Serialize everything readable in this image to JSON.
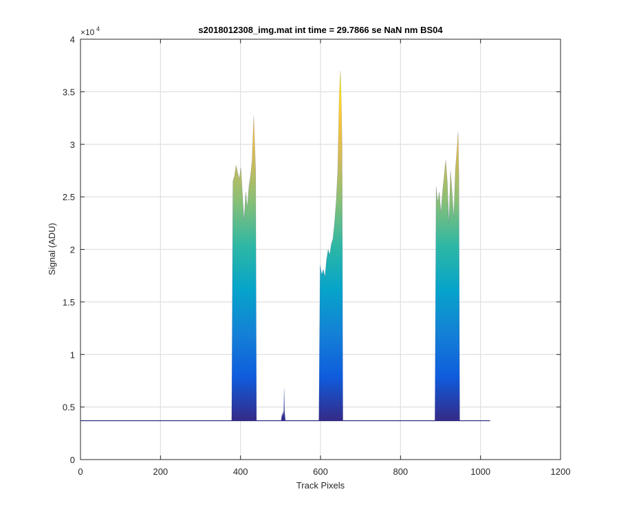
{
  "chart_data": {
    "type": "area",
    "title": "s2018012308_img.mat int time = 29.7866 se  NaN nm BS04",
    "xlabel": "Track Pixels",
    "ylabel": "Signal (ADU)",
    "xlim": [
      0,
      1200
    ],
    "ylim": [
      0,
      40000
    ],
    "y_exponent_label": "×10",
    "y_exponent_power": "4",
    "x_ticks": [
      0,
      200,
      400,
      600,
      800,
      1000,
      1200
    ],
    "x_tick_labels": [
      "0",
      "200",
      "400",
      "600",
      "800",
      "1000",
      "1200"
    ],
    "y_ticks": [
      0,
      5000,
      10000,
      15000,
      20000,
      25000,
      30000,
      35000,
      40000
    ],
    "y_tick_labels": [
      "0",
      "0.5",
      "1",
      "1.5",
      "2",
      "2.5",
      "3",
      "3.5",
      "4"
    ],
    "grid": true,
    "colormap": "parula",
    "colormap_stops": [
      "#352a87",
      "#0f5cdd",
      "#1481d6",
      "#06a4ca",
      "#2eb7a4",
      "#87bf77",
      "#d1bb59",
      "#fec832",
      "#f9fb0e"
    ],
    "line_color": "#2a2a80",
    "baseline": 3700,
    "x_range": [
      0,
      1024
    ],
    "peaks": [
      {
        "x_start": 378,
        "x_end": 440,
        "points": [
          [
            378,
            3900
          ],
          [
            381,
            26500
          ],
          [
            385,
            27000
          ],
          [
            389,
            28000
          ],
          [
            393,
            27300
          ],
          [
            397,
            26700
          ],
          [
            401,
            27800
          ],
          [
            405,
            25200
          ],
          [
            409,
            22800
          ],
          [
            413,
            25500
          ],
          [
            417,
            24000
          ],
          [
            421,
            26000
          ],
          [
            425,
            27000
          ],
          [
            429,
            28500
          ],
          [
            433,
            32700
          ],
          [
            436,
            29500
          ],
          [
            438,
            27500
          ],
          [
            440,
            3900
          ]
        ]
      },
      {
        "x_start": 502,
        "x_end": 512,
        "points": [
          [
            502,
            3800
          ],
          [
            504,
            4400
          ],
          [
            505,
            4100
          ],
          [
            507,
            4600
          ],
          [
            508,
            4200
          ],
          [
            509,
            6800
          ],
          [
            510,
            4800
          ],
          [
            511,
            4200
          ],
          [
            512,
            3800
          ]
        ]
      },
      {
        "x_start": 596,
        "x_end": 656,
        "points": [
          [
            596,
            3900
          ],
          [
            599,
            18500
          ],
          [
            603,
            17600
          ],
          [
            607,
            18100
          ],
          [
            611,
            17400
          ],
          [
            615,
            19000
          ],
          [
            619,
            20000
          ],
          [
            623,
            19500
          ],
          [
            627,
            20500
          ],
          [
            631,
            21000
          ],
          [
            635,
            22500
          ],
          [
            639,
            24500
          ],
          [
            643,
            27500
          ],
          [
            647,
            35000
          ],
          [
            650,
            37000
          ],
          [
            652,
            34000
          ],
          [
            654,
            30000
          ],
          [
            656,
            3900
          ]
        ]
      },
      {
        "x_start": 886,
        "x_end": 948,
        "points": [
          [
            886,
            3900
          ],
          [
            889,
            26000
          ],
          [
            893,
            24500
          ],
          [
            897,
            25500
          ],
          [
            901,
            23500
          ],
          [
            905,
            25500
          ],
          [
            909,
            27000
          ],
          [
            913,
            28500
          ],
          [
            917,
            26500
          ],
          [
            921,
            22500
          ],
          [
            925,
            27500
          ],
          [
            929,
            25500
          ],
          [
            933,
            23000
          ],
          [
            937,
            27500
          ],
          [
            941,
            29500
          ],
          [
            944,
            31200
          ],
          [
            946,
            27000
          ],
          [
            948,
            3900
          ]
        ]
      }
    ]
  }
}
